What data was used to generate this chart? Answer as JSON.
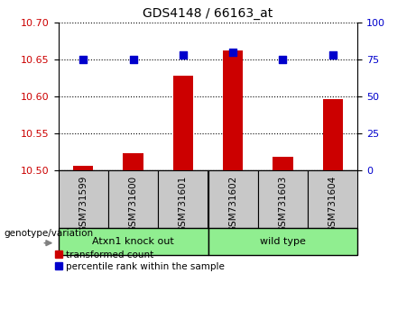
{
  "title": "GDS4148 / 66163_at",
  "samples": [
    "GSM731599",
    "GSM731600",
    "GSM731601",
    "GSM731602",
    "GSM731603",
    "GSM731604"
  ],
  "transformed_counts": [
    10.507,
    10.524,
    10.628,
    10.662,
    10.519,
    10.597
  ],
  "percentile_ranks": [
    75,
    75,
    78,
    80,
    75,
    78
  ],
  "ylim_left": [
    10.5,
    10.7
  ],
  "ylim_right": [
    0,
    100
  ],
  "yticks_left": [
    10.5,
    10.55,
    10.6,
    10.65,
    10.7
  ],
  "yticks_right": [
    0,
    25,
    50,
    75,
    100
  ],
  "groups": [
    {
      "label": "Atxn1 knock out",
      "color": "#90EE90",
      "start": 0,
      "end": 3
    },
    {
      "label": "wild type",
      "color": "#90EE90",
      "start": 3,
      "end": 6
    }
  ],
  "bar_color": "#CC0000",
  "dot_color": "#0000CC",
  "bar_width": 0.4,
  "dot_size": 40,
  "left_label_color": "#CC0000",
  "right_label_color": "#0000CC",
  "grid_color": "black",
  "legend_red_label": "transformed count",
  "legend_blue_label": "percentile rank within the sample",
  "genotype_label": "genotype/variation",
  "sample_area_color": "#C8C8C8",
  "bg_color": "#FFFFFF"
}
